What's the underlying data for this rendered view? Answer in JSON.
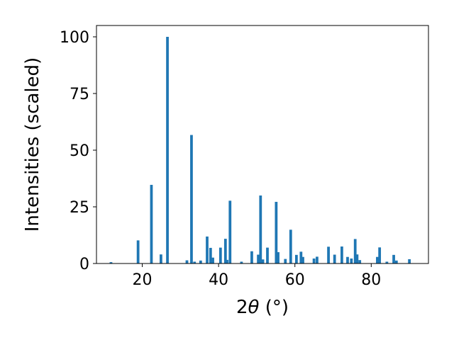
{
  "chart_data": {
    "type": "bar",
    "xlabel_prefix": "2",
    "xlabel_symbol": "θ",
    "xlabel_unit": " (°)",
    "ylabel": "Intensities (scaled)",
    "xlim": [
      8,
      95
    ],
    "ylim": [
      0,
      105
    ],
    "xticks": [
      20,
      40,
      60,
      80
    ],
    "yticks": [
      0,
      25,
      50,
      75,
      100
    ],
    "grid": false,
    "bar_color": "#1f77b4",
    "bar_width": 0.7,
    "x": [
      11.8,
      18.9,
      22.4,
      24.9,
      26.6,
      31.7,
      32.9,
      33.7,
      35.3,
      37.0,
      37.9,
      38.5,
      40.5,
      41.8,
      42.2,
      43.0,
      46.0,
      48.7,
      50.4,
      51.0,
      51.6,
      52.8,
      55.1,
      55.6,
      57.5,
      58.9,
      60.4,
      61.6,
      62.1,
      65.0,
      65.8,
      68.8,
      70.4,
      72.3,
      73.8,
      74.8,
      75.8,
      76.3,
      77.0,
      81.6,
      82.2,
      84.1,
      85.9,
      86.6,
      90.0
    ],
    "y": [
      0.6,
      10.2,
      34.7,
      4.0,
      100.0,
      1.4,
      56.7,
      0.8,
      1.3,
      11.9,
      6.9,
      2.6,
      7.0,
      10.9,
      1.6,
      27.7,
      0.8,
      5.4,
      3.9,
      30.0,
      1.8,
      7.0,
      27.2,
      5.0,
      2.0,
      14.9,
      3.8,
      5.2,
      2.9,
      2.2,
      3.0,
      7.4,
      3.9,
      7.5,
      2.9,
      2.2,
      10.8,
      4.0,
      1.5,
      2.9,
      7.1,
      0.8,
      3.8,
      1.3,
      1.9
    ]
  }
}
